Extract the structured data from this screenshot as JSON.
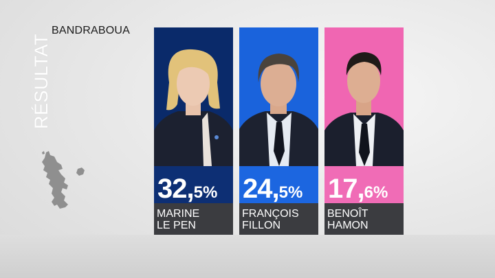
{
  "title_vertical": "RÉSULTAT",
  "commune": "BANDRABOUA",
  "candidates": [
    {
      "score_int": "32,",
      "score_dec": "5%",
      "first": "MARINE",
      "last": "LE PEN",
      "bg": "#0a2a6a",
      "score_bg": "#0d2f74",
      "hair": "#e2c27a",
      "suit": "#1c2130",
      "tie": false,
      "shirt": "#1c2130"
    },
    {
      "score_int": "24,",
      "score_dec": "5%",
      "first": "FRANÇOIS",
      "last": "FILLON",
      "bg": "#1a63dc",
      "score_bg": "#1c66e0",
      "hair": "#4a433c",
      "suit": "#1d2230",
      "tie": true,
      "shirt": "#e6ebf2"
    },
    {
      "score_int": "17,",
      "score_dec": "6%",
      "first": "BENOÎT",
      "last": "HAMON",
      "bg": "#f066b2",
      "score_bg": "#f06cb6",
      "hair": "#1f1a18",
      "suit": "#1b1f2d",
      "tie": true,
      "shirt": "#eef0f4"
    }
  ],
  "map_icon": "mayotte-map-icon",
  "colors": {
    "name_bar": "#3b3c40",
    "background": "#e6e6e6"
  }
}
